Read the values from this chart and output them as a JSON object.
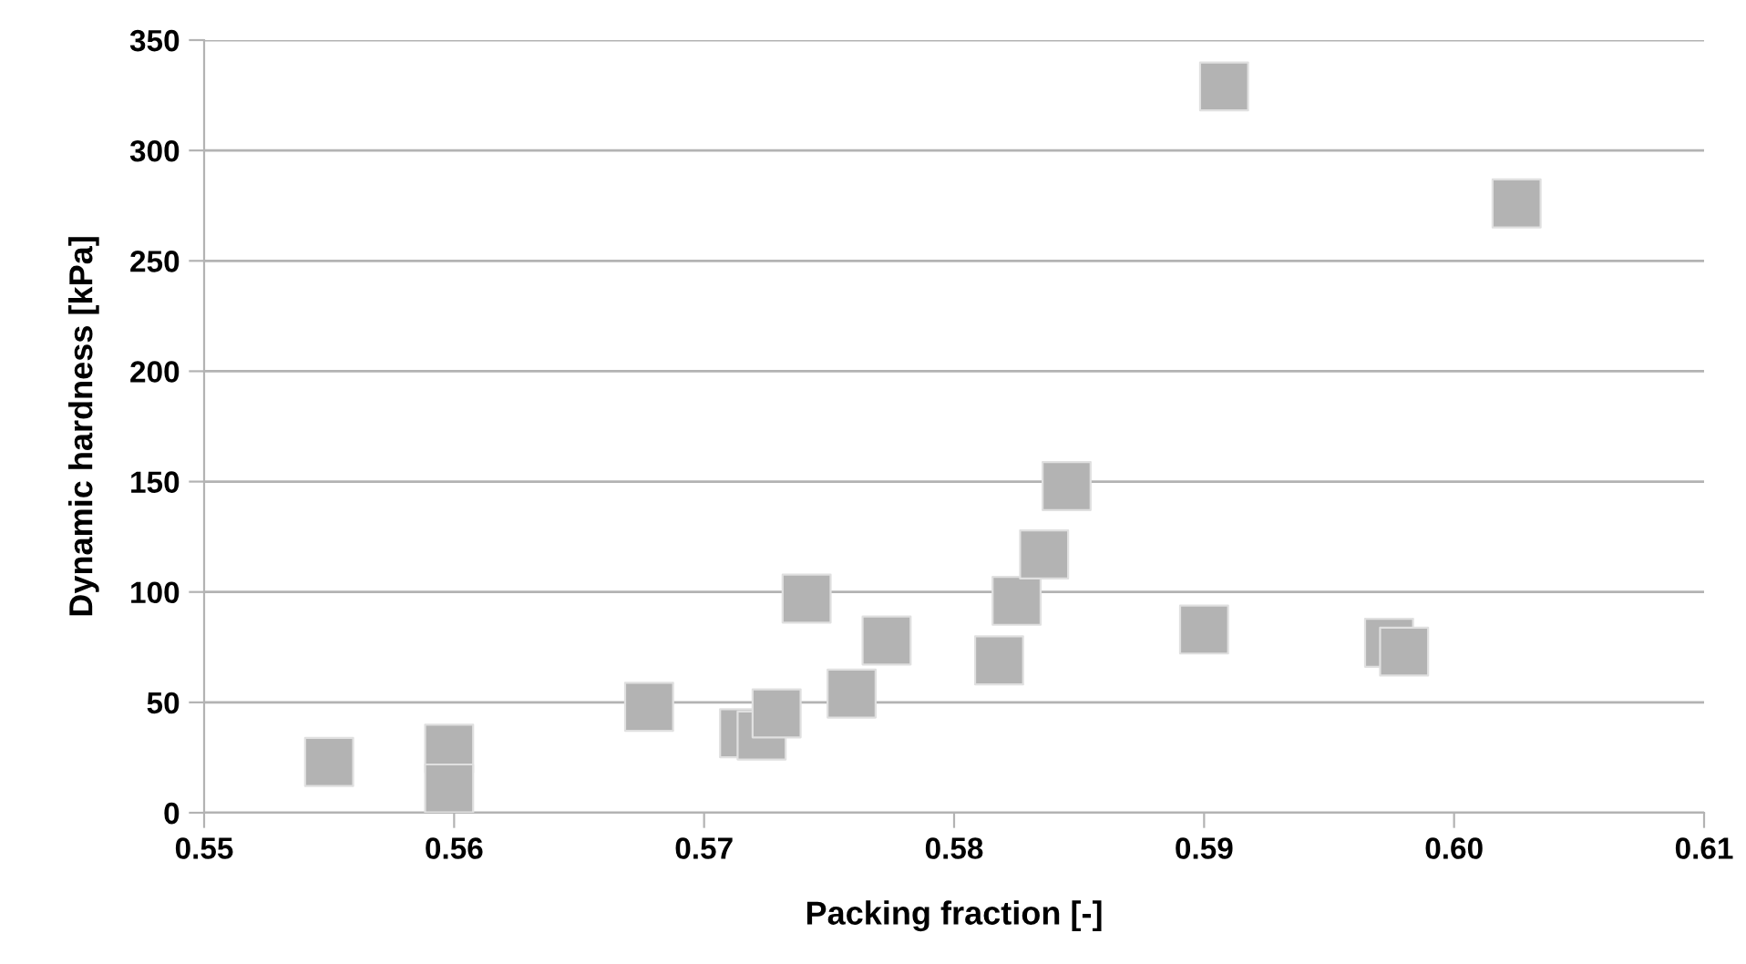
{
  "chart_data": {
    "type": "scatter",
    "xlabel": "Packing fraction [-]",
    "ylabel": "Dynamic hardness [kPa]",
    "xlim": [
      0.55,
      0.61
    ],
    "xticks": [
      {
        "value": 0.55,
        "label": "0.55"
      },
      {
        "value": 0.56,
        "label": "0.56"
      },
      {
        "value": 0.57,
        "label": "0.57"
      },
      {
        "value": 0.58,
        "label": "0.58"
      },
      {
        "value": 0.59,
        "label": "0.59"
      },
      {
        "value": 0.6,
        "label": "0.60"
      },
      {
        "value": 0.61,
        "label": "0.61"
      }
    ],
    "ylim": [
      0,
      350
    ],
    "yticks": [
      0,
      50,
      100,
      150,
      200,
      250,
      300,
      350
    ],
    "grid": "y",
    "marker": "square",
    "series": [
      {
        "color": "#b3b3b3",
        "x": [
          0.555,
          0.5598,
          0.5598,
          0.5678,
          0.5716,
          0.5723,
          0.5729,
          0.5741,
          0.5759,
          0.5773,
          0.5818,
          0.5825,
          0.5836,
          0.5845,
          0.59,
          0.5908,
          0.5974,
          0.598,
          0.6025
        ],
        "values": [
          23,
          29,
          11,
          48,
          36,
          35,
          45,
          97,
          54,
          78,
          69,
          96,
          117,
          148,
          83,
          329,
          77,
          73,
          276
        ]
      }
    ]
  }
}
